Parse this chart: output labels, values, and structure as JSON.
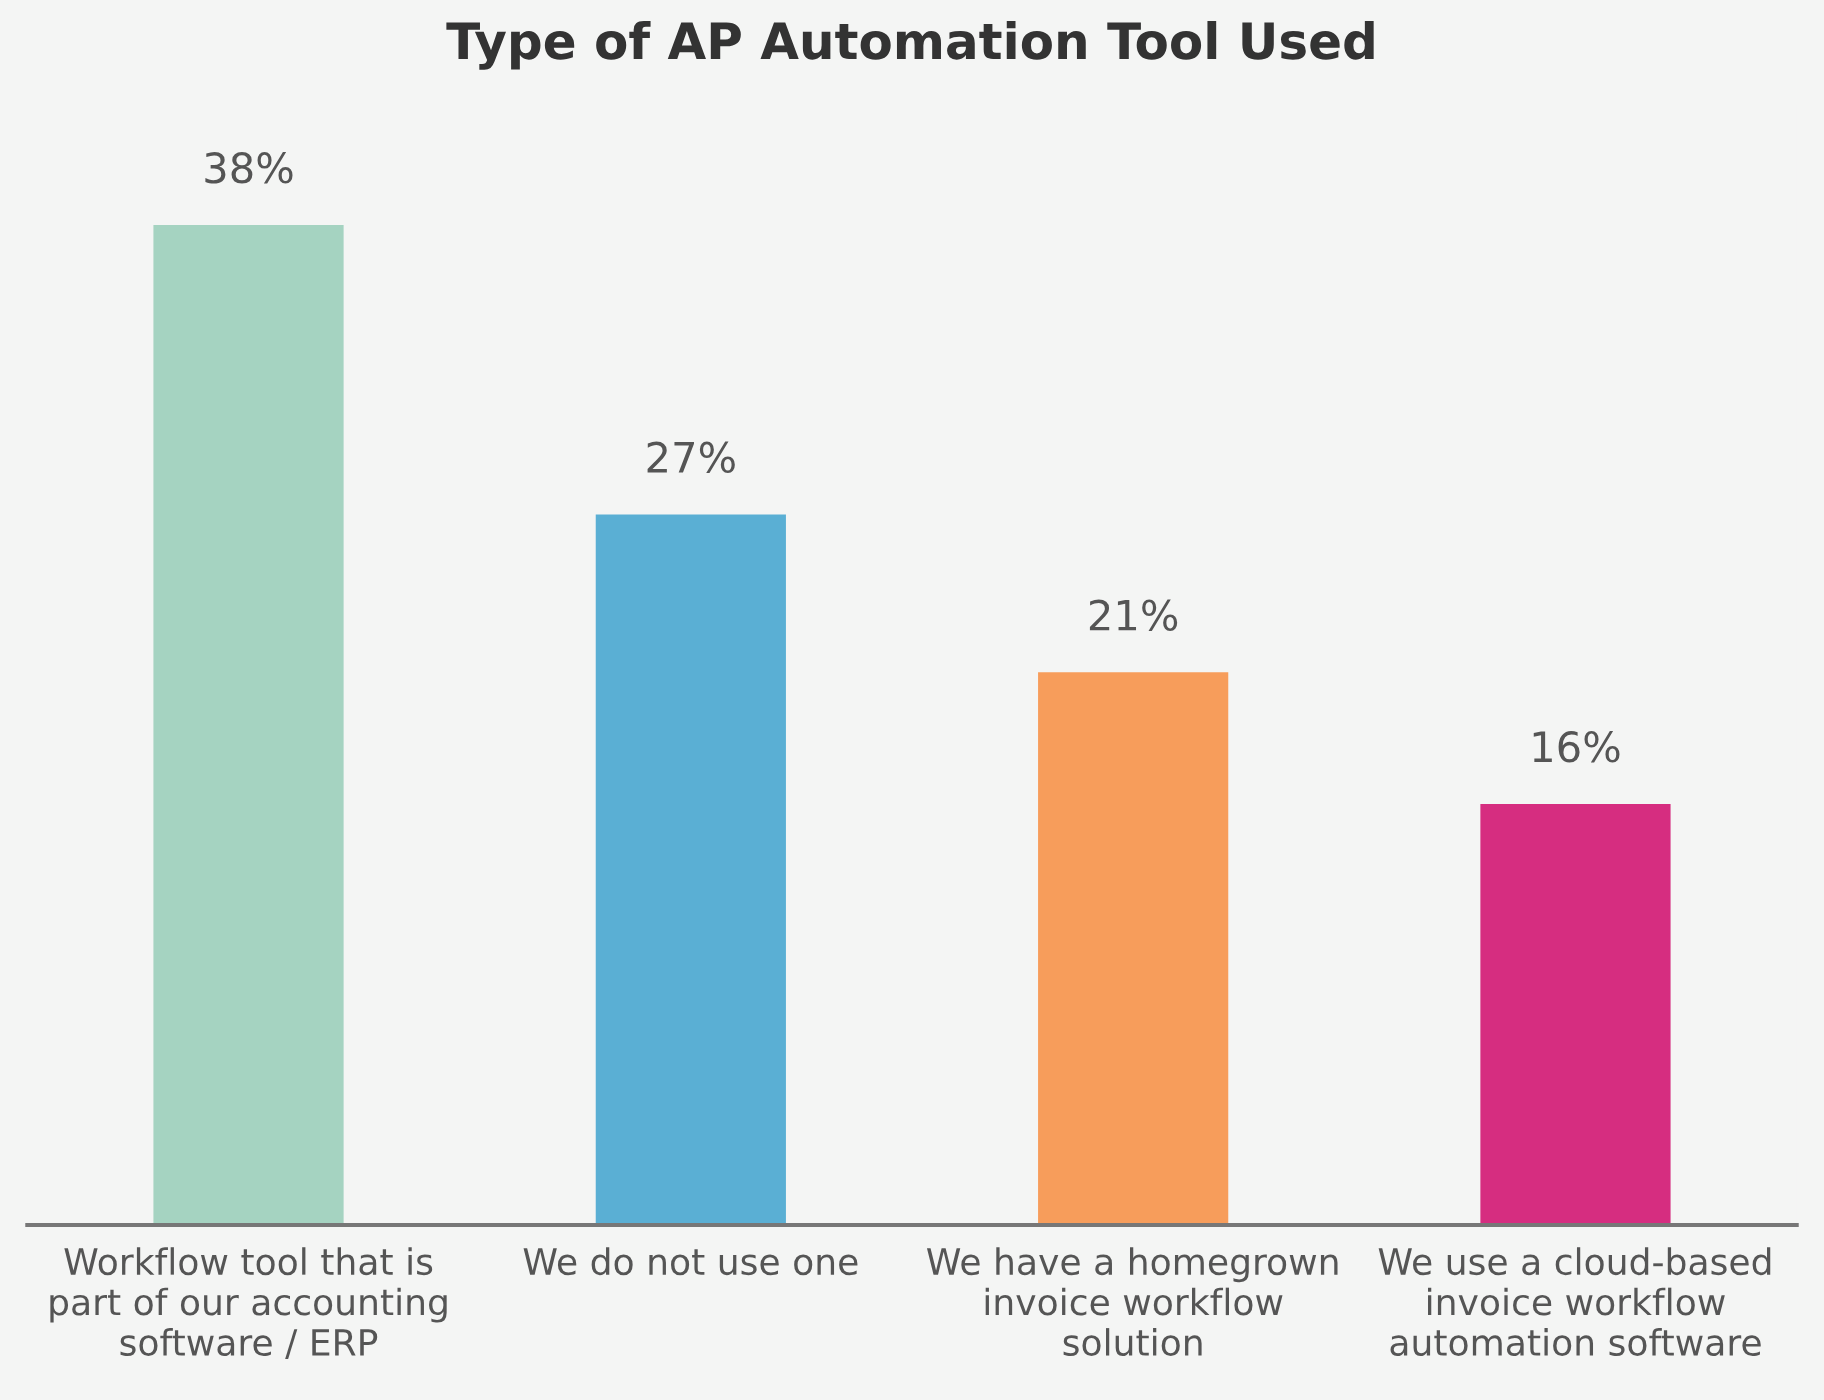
{
  "chart_data": {
    "type": "bar",
    "title": "Type of AP Automation Tool Used",
    "categories": [
      "Workflow tool that is part of our accounting software / ERP",
      "We do not use one",
      "We have a homegrown invoice workflow solution",
      "We use a cloud-based invoice workflow automation software"
    ],
    "values": [
      38,
      27,
      21,
      16
    ],
    "colors": [
      "#a5d3c1",
      "#5aafd4",
      "#f79d5b",
      "#d62d80"
    ],
    "value_labels": [
      "38%",
      "27%",
      "21%",
      "16%"
    ],
    "grid": false,
    "legend": false
  }
}
